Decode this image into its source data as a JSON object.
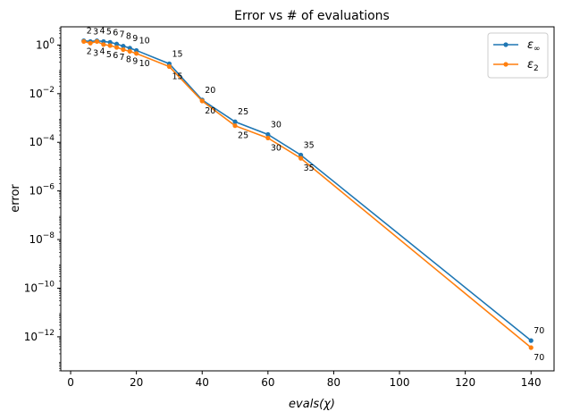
{
  "chart_data": {
    "type": "line",
    "title": "Error vs # of evaluations",
    "xlabel": "evals(χ)",
    "ylabel": "error",
    "xlim": [
      -3,
      147
    ],
    "ylim_log10": [
      -13.4,
      0.75
    ],
    "yscale": "log",
    "x_ticks": [
      0,
      20,
      40,
      60,
      80,
      100,
      120,
      140
    ],
    "y_ticks": [
      {
        "base": "10",
        "exp": "0",
        "log": 0
      },
      {
        "base": "10",
        "exp": "−2",
        "log": -2
      },
      {
        "base": "10",
        "exp": "−4",
        "log": -4
      },
      {
        "base": "10",
        "exp": "−6",
        "log": -6
      },
      {
        "base": "10",
        "exp": "−8",
        "log": -8
      },
      {
        "base": "10",
        "exp": "−10",
        "log": -10
      },
      {
        "base": "10",
        "exp": "−12",
        "log": -12
      }
    ],
    "legend": {
      "position": "top-right"
    },
    "series": [
      {
        "name": "ε∞",
        "name_base": "ε",
        "name_sub": "∞",
        "color": "#1f77b4",
        "label_side": "above",
        "points": [
          {
            "x": 4,
            "y": 1.5,
            "label": "2"
          },
          {
            "x": 6,
            "y": 1.4,
            "label": "3"
          },
          {
            "x": 8,
            "y": 1.5,
            "label": "4"
          },
          {
            "x": 10,
            "y": 1.4,
            "label": "5"
          },
          {
            "x": 12,
            "y": 1.3,
            "label": "6"
          },
          {
            "x": 14,
            "y": 1.1,
            "label": "7"
          },
          {
            "x": 16,
            "y": 0.9,
            "label": "8"
          },
          {
            "x": 18,
            "y": 0.75,
            "label": "9"
          },
          {
            "x": 20,
            "y": 0.6,
            "label": "10"
          },
          {
            "x": 30,
            "y": 0.17,
            "label": "15"
          },
          {
            "x": 40,
            "y": 0.0055,
            "label": "20"
          },
          {
            "x": 50,
            "y": 0.0007,
            "label": "25"
          },
          {
            "x": 60,
            "y": 0.00021,
            "label": "30"
          },
          {
            "x": 70,
            "y": 3e-05,
            "label": "35"
          },
          {
            "x": 140,
            "y": 7e-13,
            "label": "70"
          }
        ]
      },
      {
        "name": "ε2",
        "name_base": "ε",
        "name_sub": "2",
        "color": "#ff7f0e",
        "label_side": "below",
        "points": [
          {
            "x": 4,
            "y": 1.4,
            "label": "2"
          },
          {
            "x": 6,
            "y": 1.2,
            "label": "3"
          },
          {
            "x": 8,
            "y": 1.4,
            "label": "4"
          },
          {
            "x": 10,
            "y": 1.05,
            "label": "5"
          },
          {
            "x": 12,
            "y": 0.95,
            "label": "6"
          },
          {
            "x": 14,
            "y": 0.8,
            "label": "7"
          },
          {
            "x": 16,
            "y": 0.65,
            "label": "8"
          },
          {
            "x": 18,
            "y": 0.55,
            "label": "9"
          },
          {
            "x": 20,
            "y": 0.45,
            "label": "10"
          },
          {
            "x": 30,
            "y": 0.13,
            "label": "15"
          },
          {
            "x": 40,
            "y": 0.005,
            "label": "20"
          },
          {
            "x": 50,
            "y": 0.00048,
            "label": "25"
          },
          {
            "x": 60,
            "y": 0.00015,
            "label": "30"
          },
          {
            "x": 70,
            "y": 2.2e-05,
            "label": "35"
          },
          {
            "x": 140,
            "y": 3.6e-13,
            "label": "70"
          }
        ]
      }
    ]
  }
}
